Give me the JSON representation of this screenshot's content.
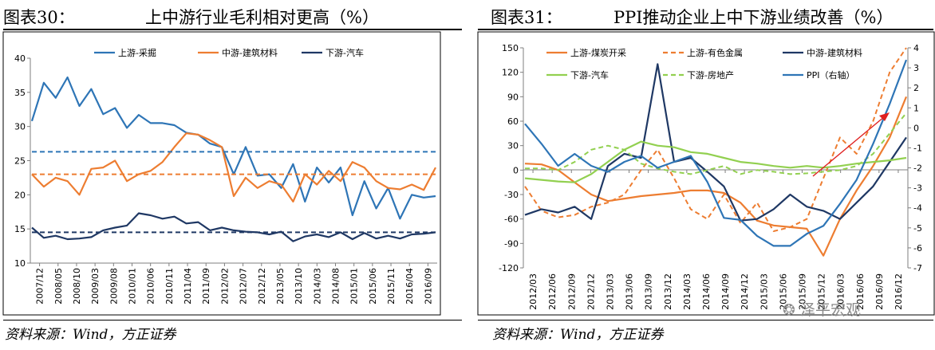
{
  "left": {
    "figure_label": "图表30：",
    "source": "资料来源：Wind，方正证券",
    "chart_data": {
      "type": "line",
      "title": "上中游行业毛利相对更高（%）",
      "ylim": [
        10,
        40
      ],
      "yticks": [
        "10",
        "15",
        "20",
        "25",
        "30",
        "35",
        "40"
      ],
      "xticks": [
        "2007/12",
        "2008/05",
        "2008/10",
        "2009/03",
        "2009/08",
        "2010/01",
        "2010/06",
        "2010/11",
        "2011/04",
        "2011/09",
        "2012/02",
        "2012/07",
        "2012/12",
        "2013/05",
        "2013/10",
        "2014/03",
        "2014/08",
        "2015/01",
        "2015/06",
        "2015/11",
        "2016/04",
        "2016/09"
      ],
      "series": [
        {
          "name": "上游-采掘",
          "color": "#2E75B6",
          "values": [
            30.8,
            36.4,
            34.2,
            37.2,
            33.0,
            35.5,
            31.8,
            32.7,
            29.8,
            31.7,
            30.5,
            30.5,
            30.2,
            29.1,
            28.8,
            27.5,
            27.0,
            23.0,
            27.0,
            22.8,
            23.0,
            21.0,
            24.5,
            19.0,
            24.0,
            21.8,
            24.0,
            17.0,
            22.0,
            18.0,
            21.0,
            16.5,
            20.0,
            19.6,
            19.8
          ]
        },
        {
          "name": "中游-建筑材料",
          "color": "#ED7D31",
          "values": [
            23.0,
            21.2,
            22.5,
            22.0,
            20.0,
            23.8,
            24.0,
            25.0,
            22.0,
            23.0,
            23.5,
            24.8,
            27.0,
            29.0,
            28.8,
            28.0,
            27.0,
            19.8,
            22.5,
            21.0,
            22.0,
            21.5,
            19.0,
            23.0,
            21.5,
            23.5,
            22.0,
            24.8,
            24.0,
            22.0,
            21.0,
            20.8,
            21.5,
            20.7,
            24.0
          ]
        },
        {
          "name": "下游-汽车",
          "color": "#1F3864",
          "values": [
            15.2,
            13.7,
            14.0,
            13.5,
            13.6,
            13.8,
            14.8,
            15.2,
            15.5,
            17.3,
            17.0,
            16.5,
            16.8,
            15.8,
            16.0,
            14.8,
            15.2,
            14.8,
            14.6,
            14.5,
            14.2,
            14.6,
            13.2,
            13.9,
            14.2,
            13.8,
            14.5,
            13.5,
            14.4,
            13.6,
            14.0,
            13.6,
            14.2,
            14.3,
            14.5
          ]
        },
        {
          "name": "上游-采掘 均值",
          "color": "#2E75B6",
          "dashed": true,
          "values": [
            26.3,
            26.3
          ]
        },
        {
          "name": "中游-建筑材料 均值",
          "color": "#ED7D31",
          "dashed": true,
          "values": [
            23.0,
            23.0
          ]
        },
        {
          "name": "下游-汽车 均值",
          "color": "#1F3864",
          "dashed": true,
          "values": [
            14.5,
            14.5
          ]
        }
      ]
    }
  },
  "right": {
    "figure_label": "图表31：",
    "source": "资料来源：Wind，方正证券",
    "watermark": "泽平宏观",
    "chart_data": {
      "type": "line",
      "title": "PPI推动企业上中下游业绩改善（%）",
      "ylim": [
        -120,
        150
      ],
      "ylim_right": [
        -7,
        4
      ],
      "yticks": [
        "-120",
        "-90",
        "-60",
        "-30",
        "0",
        "30",
        "60",
        "90",
        "120",
        "150"
      ],
      "yticks_right": [
        "-7",
        "-6",
        "-5",
        "-4",
        "-3",
        "-2",
        "-1",
        "0",
        "1",
        "2",
        "3",
        "4"
      ],
      "xticks": [
        "2012/03",
        "2012/06",
        "2012/09",
        "2012/12",
        "2013/03",
        "2013/06",
        "2013/09",
        "2013/12",
        "2014/03",
        "2014/06",
        "2014/09",
        "2014/12",
        "2015/03",
        "2015/06",
        "2015/09",
        "2015/12",
        "2016/03",
        "2016/06",
        "2016/09",
        "2016/12"
      ],
      "series": [
        {
          "name": "上游-煤炭开采",
          "color": "#ED7D31",
          "values": [
            8,
            7,
            0,
            -15,
            -30,
            -38,
            -35,
            -32,
            -30,
            -28,
            -25,
            -25,
            -28,
            -40,
            -62,
            -68,
            -70,
            -72,
            -105,
            -60,
            -25,
            5,
            40,
            90
          ]
        },
        {
          "name": "上游-有色金属",
          "color": "#ED7D31",
          "dashed": true,
          "values": [
            -20,
            -50,
            -58,
            -55,
            -45,
            -40,
            -30,
            0,
            25,
            -10,
            -48,
            -60,
            -30,
            -65,
            -40,
            -75,
            -70,
            -60,
            -10,
            40,
            20,
            60,
            120,
            150
          ]
        },
        {
          "name": "中游-建筑材料",
          "color": "#1F3864",
          "values": [
            -55,
            -48,
            -52,
            -45,
            -60,
            5,
            20,
            15,
            130,
            10,
            15,
            -2,
            -20,
            -62,
            -60,
            -48,
            -30,
            -45,
            -50,
            -60,
            -40,
            -20,
            10,
            40
          ]
        },
        {
          "name": "下游-汽车",
          "color": "#92D050",
          "values": [
            -10,
            -12,
            -14,
            -15,
            -5,
            10,
            25,
            35,
            30,
            28,
            22,
            20,
            15,
            10,
            8,
            5,
            3,
            5,
            3,
            5,
            8,
            10,
            12,
            15
          ]
        },
        {
          "name": "下游-房地产",
          "color": "#92D050",
          "dashed": true,
          "values": [
            2,
            2,
            0,
            10,
            25,
            30,
            25,
            8,
            2,
            -2,
            -5,
            0,
            5,
            -5,
            0,
            -2,
            -5,
            -4,
            -2,
            0,
            5,
            20,
            45,
            70
          ]
        },
        {
          "name": "PPI（右轴）",
          "color": "#2E75B6",
          "axis": "right",
          "values": [
            0.2,
            -0.8,
            -1.9,
            -1.3,
            -1.9,
            -2.2,
            -1.7,
            -1.4,
            -2.0,
            -1.7,
            -1.4,
            -2.7,
            -4.5,
            -4.6,
            -5.4,
            -5.9,
            -5.9,
            -5.3,
            -4.9,
            -3.8,
            -2.6,
            -0.8,
            1.2,
            3.4
          ]
        }
      ]
    }
  }
}
